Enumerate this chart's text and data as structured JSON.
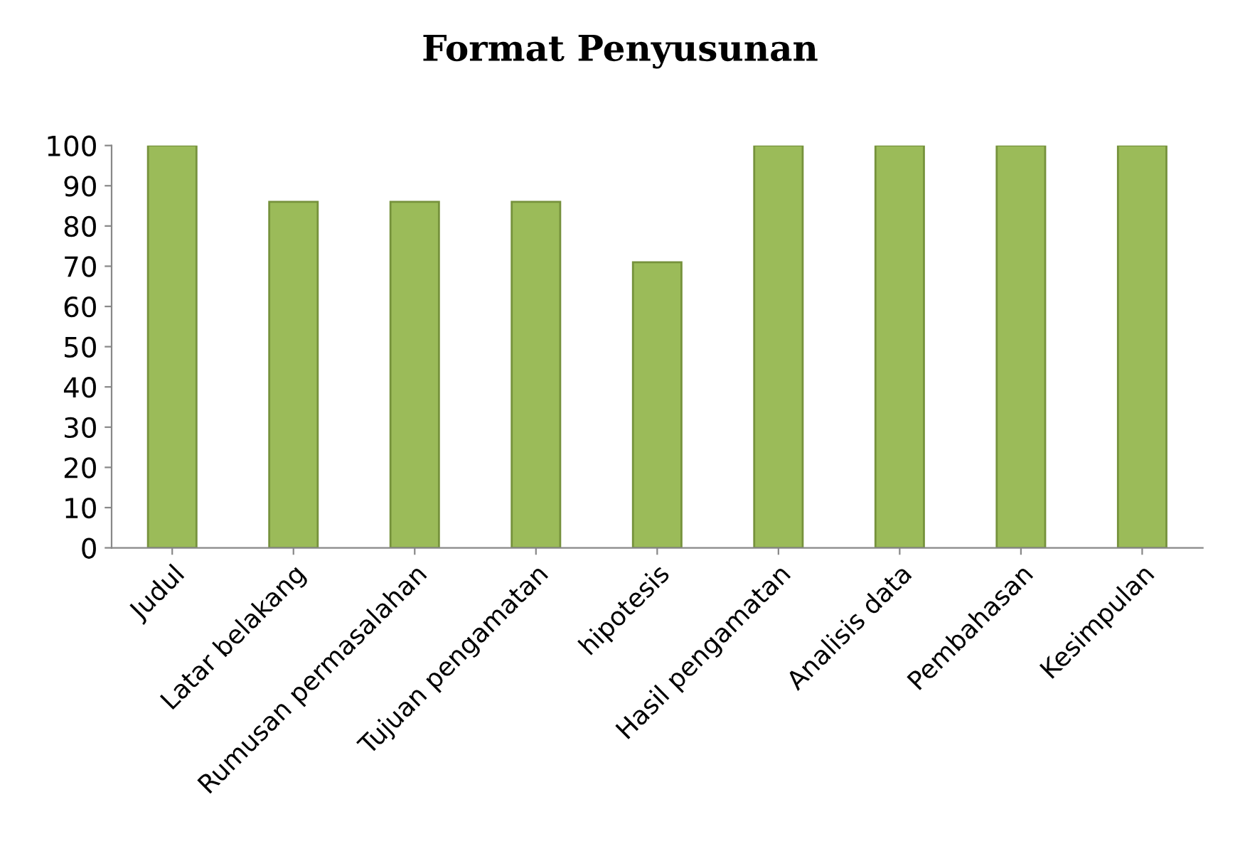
{
  "chart_data": {
    "type": "bar",
    "title": "Format Penyusunan",
    "categories": [
      "Judul",
      "Latar belakang",
      "Rumusan permasalahan",
      "Tujuan pengamatan",
      "hipotesis",
      "Hasil pengamatan",
      "Analisis data",
      "Pembahasan",
      "Kesimpulan"
    ],
    "values": [
      100,
      86,
      86,
      86,
      71,
      100,
      100,
      100,
      100
    ],
    "color": "#9bbb59",
    "ylim": [
      0,
      100
    ],
    "yticks": [
      0,
      10,
      20,
      30,
      40,
      50,
      60,
      70,
      80,
      90,
      100
    ],
    "grid": false
  }
}
